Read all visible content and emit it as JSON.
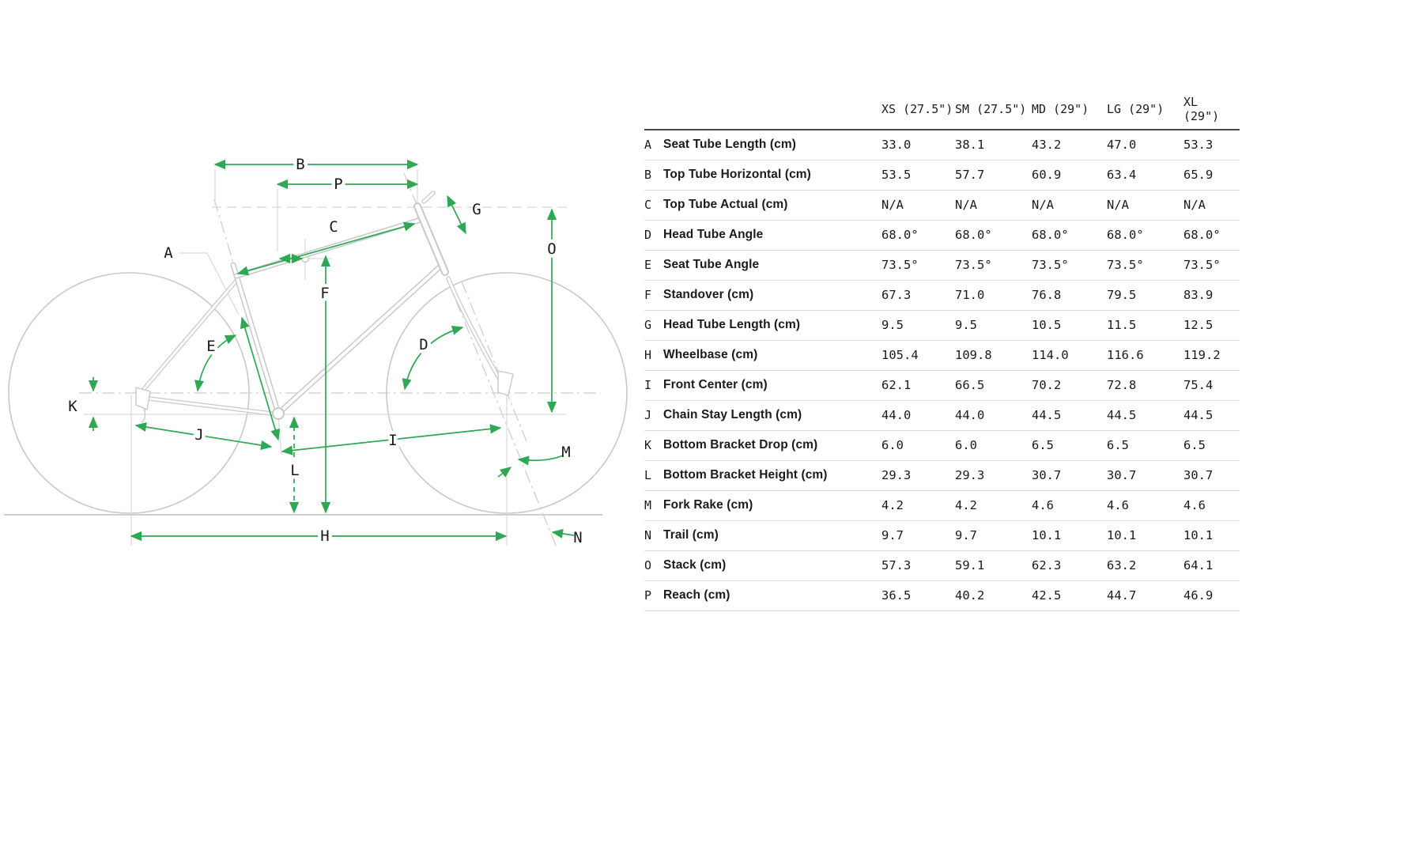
{
  "diagram": {
    "accent_color": "#2ea853",
    "line_color": "#c9c9c9",
    "labels": {
      "A": "A",
      "B": "B",
      "C": "C",
      "D": "D",
      "E": "E",
      "F": "F",
      "G": "G",
      "H": "H",
      "I": "I",
      "J": "J",
      "K": "K",
      "L": "L",
      "M": "M",
      "N": "N",
      "O": "O",
      "P": "P"
    }
  },
  "table": {
    "columns": [
      "XS (27.5\")",
      "SM (27.5\")",
      "MD (29\")",
      "LG (29\")",
      "XL (29\")"
    ],
    "rows": [
      {
        "key": "A",
        "label": "Seat Tube Length (cm)",
        "values": [
          "33.0",
          "38.1",
          "43.2",
          "47.0",
          "53.3"
        ]
      },
      {
        "key": "B",
        "label": "Top Tube Horizontal (cm)",
        "values": [
          "53.5",
          "57.7",
          "60.9",
          "63.4",
          "65.9"
        ]
      },
      {
        "key": "C",
        "label": "Top Tube Actual (cm)",
        "values": [
          "N/A",
          "N/A",
          "N/A",
          "N/A",
          "N/A"
        ]
      },
      {
        "key": "D",
        "label": "Head Tube Angle",
        "values": [
          "68.0°",
          "68.0°",
          "68.0°",
          "68.0°",
          "68.0°"
        ]
      },
      {
        "key": "E",
        "label": "Seat Tube Angle",
        "values": [
          "73.5°",
          "73.5°",
          "73.5°",
          "73.5°",
          "73.5°"
        ]
      },
      {
        "key": "F",
        "label": "Standover (cm)",
        "values": [
          "67.3",
          "71.0",
          "76.8",
          "79.5",
          "83.9"
        ]
      },
      {
        "key": "G",
        "label": "Head Tube Length (cm)",
        "values": [
          "9.5",
          "9.5",
          "10.5",
          "11.5",
          "12.5"
        ]
      },
      {
        "key": "H",
        "label": "Wheelbase (cm)",
        "values": [
          "105.4",
          "109.8",
          "114.0",
          "116.6",
          "119.2"
        ]
      },
      {
        "key": "I",
        "label": "Front Center (cm)",
        "values": [
          "62.1",
          "66.5",
          "70.2",
          "72.8",
          "75.4"
        ]
      },
      {
        "key": "J",
        "label": "Chain Stay Length (cm)",
        "values": [
          "44.0",
          "44.0",
          "44.5",
          "44.5",
          "44.5"
        ]
      },
      {
        "key": "K",
        "label": "Bottom Bracket Drop (cm)",
        "values": [
          "6.0",
          "6.0",
          "6.5",
          "6.5",
          "6.5"
        ]
      },
      {
        "key": "L",
        "label": "Bottom Bracket Height (cm)",
        "values": [
          "29.3",
          "29.3",
          "30.7",
          "30.7",
          "30.7"
        ]
      },
      {
        "key": "M",
        "label": "Fork Rake (cm)",
        "values": [
          "4.2",
          "4.2",
          "4.6",
          "4.6",
          "4.6"
        ]
      },
      {
        "key": "N",
        "label": "Trail (cm)",
        "values": [
          "9.7",
          "9.7",
          "10.1",
          "10.1",
          "10.1"
        ]
      },
      {
        "key": "O",
        "label": "Stack (cm)",
        "values": [
          "57.3",
          "59.1",
          "62.3",
          "63.2",
          "64.1"
        ]
      },
      {
        "key": "P",
        "label": "Reach (cm)",
        "values": [
          "36.5",
          "40.2",
          "42.5",
          "44.7",
          "46.9"
        ]
      }
    ]
  }
}
